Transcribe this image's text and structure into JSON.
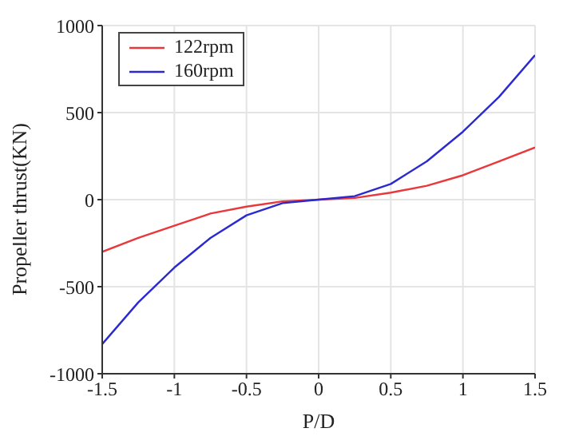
{
  "chart_data": {
    "type": "line",
    "xlabel": "P/D",
    "ylabel": "Propeller thrust(KN)",
    "x": [
      -1.5,
      -1.25,
      -1,
      -0.75,
      -0.5,
      -0.25,
      0,
      0.25,
      0.5,
      0.75,
      1,
      1.25,
      1.5
    ],
    "series": [
      {
        "name": "122rpm",
        "color": "#e8383c",
        "values": [
          -300,
          -220,
          -150,
          -80,
          -40,
          -10,
          0,
          10,
          40,
          80,
          140,
          220,
          300
        ]
      },
      {
        "name": "160rpm",
        "color": "#2a2ad0",
        "values": [
          -830,
          -590,
          -390,
          -220,
          -90,
          -20,
          0,
          20,
          90,
          220,
          390,
          590,
          830
        ]
      }
    ],
    "xlim": [
      -1.5,
      1.5
    ],
    "xticks": [
      -1.5,
      -1,
      -0.5,
      0,
      0.5,
      1,
      1.5
    ],
    "ylim": [
      -1000,
      1000
    ],
    "yticks": [
      -1000,
      -500,
      0,
      500,
      1000
    ],
    "grid": true,
    "legend": "top left",
    "marker": "none",
    "line_style": "solid"
  }
}
